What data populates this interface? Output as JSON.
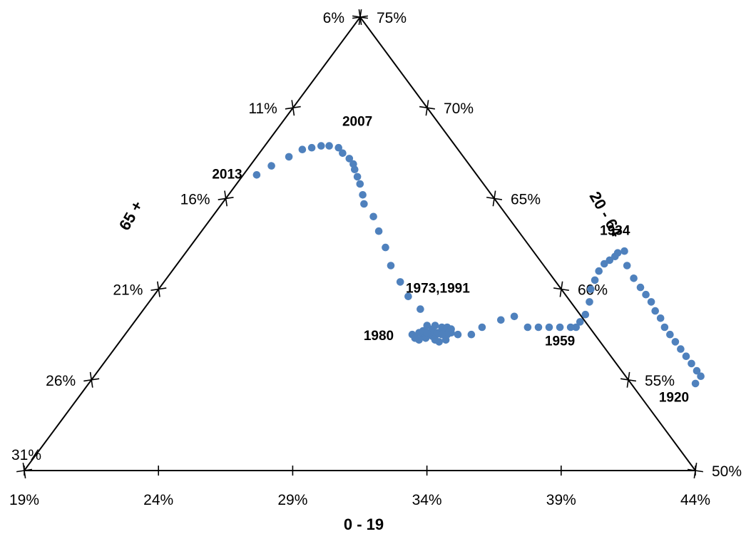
{
  "chart_data": {
    "type": "scatter",
    "subtype": "ternary",
    "title": "",
    "axes": {
      "bottom": {
        "label": "0 - 19",
        "ticks": [
          "19%",
          "24%",
          "29%",
          "34%",
          "39%",
          "44%"
        ],
        "range": [
          19,
          44
        ]
      },
      "right": {
        "label": "20 - 64",
        "ticks": [
          "50%",
          "55%",
          "60%",
          "65%",
          "70%",
          "75%"
        ],
        "range": [
          50,
          75
        ]
      },
      "left": {
        "label": "65 +",
        "ticks": [
          "31%",
          "26%",
          "21%",
          "16%",
          "11%",
          "6%"
        ],
        "range": [
          6,
          31
        ]
      }
    },
    "series": [
      {
        "color": "#4f81bd",
        "points": [
          [
            41.6,
            54.8,
            3.6
          ],
          [
            41.6,
            55.2,
            3.2
          ],
          [
            41.3,
            55.5,
            3.2
          ],
          [
            40.9,
            55.9,
            3.2
          ],
          [
            40.5,
            56.3,
            3.2
          ],
          [
            40.1,
            56.7,
            3.2
          ],
          [
            39.7,
            57.1,
            3.2
          ],
          [
            39.3,
            57.5,
            3.2
          ],
          [
            38.9,
            57.9,
            3.2
          ],
          [
            38.5,
            58.4,
            3.1
          ],
          [
            38.1,
            58.8,
            3.1
          ],
          [
            37.7,
            59.3,
            3.0
          ],
          [
            37.3,
            59.7,
            3.0
          ],
          [
            36.9,
            60.1,
            3.0
          ],
          [
            36.4,
            60.6,
            3.0
          ],
          [
            35.8,
            61.3,
            2.9
          ],
          [
            35.3,
            62.1,
            2.6
          ],
          [
            35.1,
            62.0,
            2.9
          ],
          [
            35.1,
            61.8,
            3.1
          ],
          [
            35.0,
            61.6,
            3.4
          ],
          [
            34.9,
            61.4,
            3.7
          ],
          [
            34.9,
            61.0,
            4.1
          ],
          [
            35.0,
            60.5,
            4.5
          ],
          [
            35.1,
            60.0,
            4.9
          ],
          [
            35.4,
            59.3,
            5.3
          ],
          [
            35.6,
            58.6,
            5.8
          ],
          [
            35.6,
            58.2,
            6.2
          ],
          [
            35.6,
            57.9,
            6.5
          ],
          [
            35.4,
            57.9,
            6.7
          ],
          [
            35.0,
            57.9,
            7.1
          ],
          [
            34.6,
            57.9,
            7.5
          ],
          [
            34.2,
            57.9,
            7.9
          ],
          [
            33.8,
            57.9,
            8.3
          ],
          [
            33.0,
            58.5,
            8.5
          ],
          [
            32.6,
            58.3,
            9.1
          ],
          [
            32.1,
            57.9,
            10.0
          ],
          [
            31.9,
            57.5,
            10.6
          ],
          [
            31.4,
            57.5,
            11.1
          ],
          [
            31.0,
            57.5,
            11.5
          ],
          [
            30.6,
            57.5,
            11.9
          ],
          [
            30.1,
            57.5,
            12.4
          ],
          [
            29.7,
            57.5,
            12.8
          ],
          [
            29.9,
            57.6,
            12.5
          ],
          [
            30.0,
            57.7,
            12.3
          ],
          [
            30.3,
            57.8,
            11.9
          ],
          [
            30.4,
            57.6,
            12.0
          ],
          [
            30.3,
            57.3,
            12.4
          ],
          [
            30.1,
            57.2,
            12.7
          ],
          [
            29.9,
            57.3,
            12.8
          ],
          [
            30.0,
            58.0,
            12.0
          ],
          [
            30.3,
            58.0,
            11.7
          ],
          [
            30.6,
            57.9,
            11.5
          ],
          [
            30.8,
            57.9,
            11.3
          ],
          [
            31.0,
            57.8,
            11.2
          ],
          [
            31.1,
            57.6,
            11.3
          ],
          [
            31.1,
            57.2,
            11.7
          ],
          [
            30.9,
            57.1,
            12.0
          ],
          [
            30.7,
            57.2,
            12.1
          ],
          [
            30.5,
            57.4,
            12.1
          ],
          [
            30.3,
            57.6,
            12.1
          ],
          [
            30.2,
            57.6,
            12.2
          ],
          [
            30.6,
            57.6,
            11.8
          ],
          [
            30.8,
            57.6,
            11.6
          ],
          [
            31.0,
            57.6,
            11.4
          ],
          [
            31.0,
            57.5,
            11.5
          ],
          [
            30.8,
            57.5,
            11.7
          ],
          [
            29.3,
            58.9,
            11.8
          ],
          [
            28.5,
            59.6,
            11.9
          ],
          [
            27.8,
            60.4,
            11.8
          ],
          [
            27.0,
            61.3,
            11.7
          ],
          [
            26.3,
            62.3,
            11.4
          ],
          [
            25.6,
            63.2,
            11.2
          ],
          [
            25.0,
            64.0,
            11.0
          ],
          [
            24.3,
            64.7,
            11.0
          ],
          [
            24.0,
            65.2,
            10.8
          ],
          [
            23.6,
            65.8,
            10.6
          ],
          [
            23.3,
            66.2,
            10.5
          ],
          [
            23.0,
            66.6,
            10.4
          ],
          [
            22.8,
            66.9,
            10.3
          ],
          [
            22.5,
            67.2,
            10.3
          ],
          [
            22.1,
            67.5,
            10.4
          ],
          [
            21.8,
            67.8,
            10.4
          ],
          [
            21.4,
            67.9,
            10.7
          ],
          [
            21.1,
            67.9,
            11.0
          ],
          [
            20.8,
            67.8,
            11.4
          ],
          [
            20.5,
            67.7,
            11.8
          ],
          [
            20.2,
            67.3,
            12.5
          ],
          [
            19.8,
            66.8,
            13.4
          ],
          [
            19.5,
            66.3,
            14.2
          ]
        ]
      }
    ],
    "annotations": [
      {
        "text": "2007",
        "at": [
          21.9,
          69.0,
          9.1
        ]
      },
      {
        "text": "2013",
        "at": [
          18.5,
          66.1,
          15.4
        ]
      },
      {
        "text": "1934",
        "at": [
          34.5,
          63.0,
          2.5
        ]
      },
      {
        "text": "1973,1991",
        "at": [
          29.5,
          59.8,
          10.7
        ]
      },
      {
        "text": "1959",
        "at": [
          35.5,
          56.9,
          7.6
        ]
      },
      {
        "text": "1980",
        "at": [
          28.6,
          57.2,
          14.2
        ]
      },
      {
        "text": "1920",
        "at": [
          41.3,
          53.8,
          4.9
        ]
      }
    ]
  }
}
